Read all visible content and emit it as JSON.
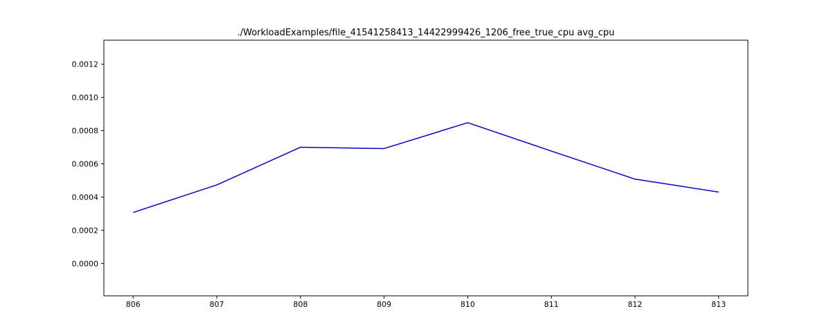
{
  "chart_data": {
    "type": "line",
    "title": "./WorkloadExamples/file_41541258413_14422999426_1206_free_true_cpu avg_cpu",
    "xlabel": "",
    "ylabel": "",
    "x": [
      806,
      807,
      808,
      809,
      810,
      811,
      812,
      813
    ],
    "series": [
      {
        "values": [
          0.000307,
          0.000473,
          0.0007,
          0.000692,
          0.000848,
          0.000677,
          0.000508,
          0.00043
        ],
        "color": "#0000cc"
      }
    ],
    "xlim": [
      805.65,
      813.35
    ],
    "ylim": [
      -0.000195,
      0.001345
    ],
    "x_ticks": [
      "806",
      "807",
      "808",
      "809",
      "810",
      "811",
      "812",
      "813"
    ],
    "y_ticks": [
      "0.0000",
      "0.0002",
      "0.0004",
      "0.0006",
      "0.0008",
      "0.0010",
      "0.0012"
    ],
    "grid": false,
    "legend": "none"
  }
}
